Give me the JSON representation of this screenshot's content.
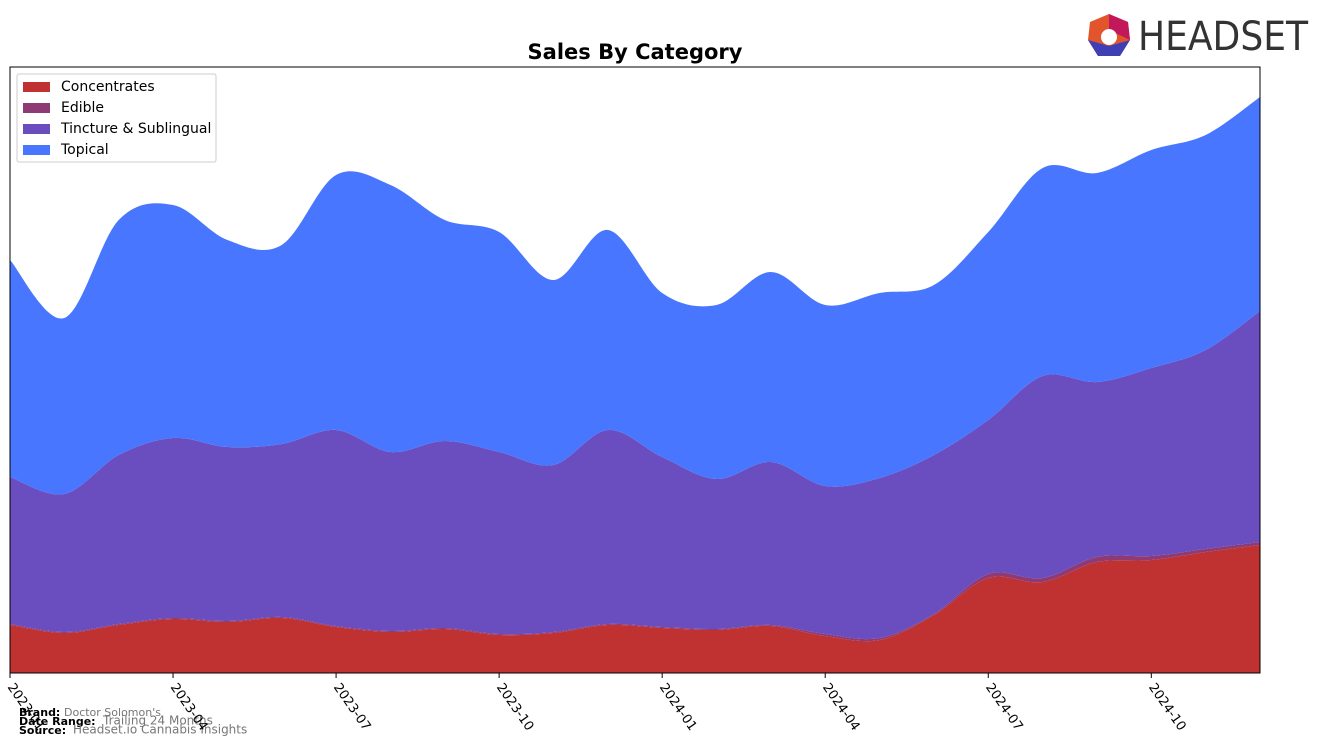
{
  "chart_data": {
    "type": "stacked-area",
    "title": "Sales By Category",
    "x": [
      "2023-01",
      "2023-02",
      "2023-03",
      "2023-04",
      "2023-05",
      "2023-06",
      "2023-07",
      "2023-08",
      "2023-09",
      "2023-10",
      "2023-11",
      "2023-12",
      "2024-01",
      "2024-02",
      "2024-03",
      "2024-04",
      "2024-05",
      "2024-06",
      "2024-07",
      "2024-08",
      "2024-09",
      "2024-10",
      "2024-11",
      "2024-12"
    ],
    "xticks": [
      "2023-01",
      "2023-04",
      "2023-07",
      "2023-10",
      "2024-01",
      "2024-04",
      "2024-07",
      "2024-10"
    ],
    "ylim": [
      0,
      606
    ],
    "legend": "upper left",
    "series": [
      {
        "name": "Concentrates",
        "color": "#c03232",
        "values": [
          48,
          40,
          48,
          54,
          51,
          55,
          46,
          41,
          44,
          38,
          40,
          48,
          45,
          43,
          47,
          37,
          33,
          58,
          95,
          91,
          111,
          113,
          121,
          128
        ]
      },
      {
        "name": "Edible",
        "color": "#8e3a75",
        "values": [
          1,
          1,
          1,
          1,
          1,
          1,
          1,
          1,
          1,
          1,
          1,
          1,
          1,
          1,
          1,
          2,
          2,
          1,
          4,
          4,
          5,
          4,
          3,
          3
        ]
      },
      {
        "name": "Tincture & Sublingual",
        "color": "#6a4dbe",
        "values": [
          147,
          138,
          169,
          180,
          174,
          173,
          196,
          179,
          187,
          182,
          167,
          194,
          170,
          150,
          163,
          148,
          160,
          159,
          154,
          202,
          175,
          188,
          199,
          231
        ]
      },
      {
        "name": "Topical",
        "color": "#4876ff",
        "values": [
          217,
          176,
          235,
          233,
          207,
          199,
          255,
          267,
          221,
          220,
          185,
          200,
          164,
          174,
          190,
          181,
          185,
          170,
          188,
          208,
          209,
          218,
          215,
          214
        ]
      }
    ]
  },
  "footer": {
    "brand_label": "Brand:",
    "brand": "Doctor Solomon's",
    "date_label": "Date Range:",
    "date": "Trailing 24 Months",
    "source_label": "Source:",
    "source": "Headset.io Cannabis Insights"
  },
  "logo": {
    "text": "HEADSET"
  }
}
